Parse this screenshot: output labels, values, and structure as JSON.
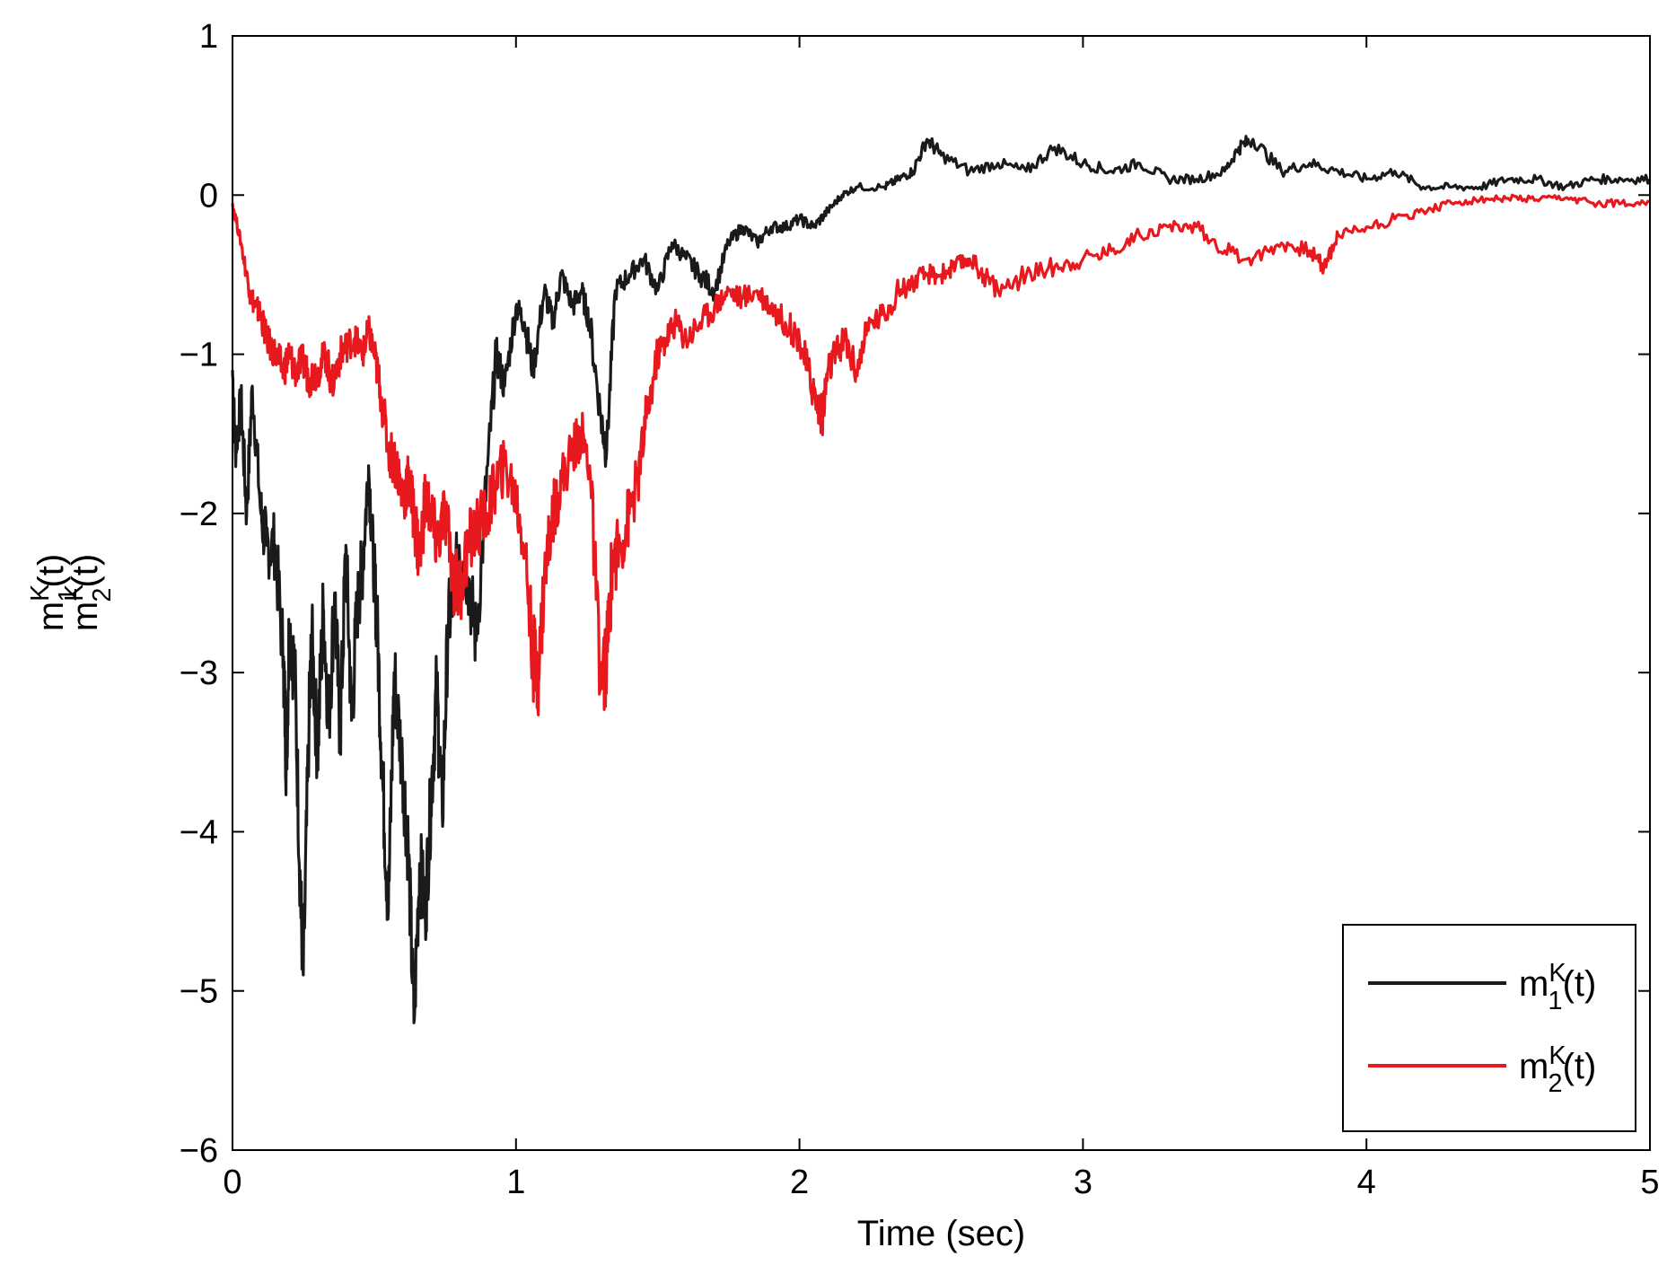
{
  "chart_data": {
    "type": "line",
    "title": "",
    "xlabel": "Time (sec)",
    "ylabel_lines": [
      {
        "base": "m",
        "sub": "1",
        "sup": "K",
        "suffix": "(t)"
      },
      {
        "base": "m",
        "sub": "2",
        "sup": "K",
        "suffix": "(t)"
      }
    ],
    "xlim": [
      0,
      5
    ],
    "ylim": [
      -6,
      1
    ],
    "xticks": [
      0,
      1,
      2,
      3,
      4,
      5
    ],
    "xtick_labels": [
      "0",
      "1",
      "2",
      "3",
      "4",
      "5"
    ],
    "yticks": [
      1,
      0,
      -1,
      -2,
      -3,
      -4,
      -5,
      -6
    ],
    "ytick_labels": [
      "1",
      "0",
      "−1",
      "−2",
      "−3",
      "−4",
      "−5",
      "−6"
    ],
    "grid": false,
    "legend_position": "bottom-right",
    "series": [
      {
        "name": "m1K(t)",
        "label": {
          "base": "m",
          "sub": "1",
          "sup": "K",
          "suffix": "(t)"
        },
        "color": "#1a1a1a",
        "x": [
          0,
          0.01,
          0.03,
          0.05,
          0.07,
          0.1,
          0.12,
          0.15,
          0.18,
          0.19,
          0.2,
          0.22,
          0.24,
          0.25,
          0.27,
          0.28,
          0.3,
          0.32,
          0.34,
          0.36,
          0.38,
          0.4,
          0.42,
          0.44,
          0.46,
          0.48,
          0.5,
          0.51,
          0.53,
          0.55,
          0.57,
          0.6,
          0.62,
          0.64,
          0.66,
          0.68,
          0.7,
          0.72,
          0.74,
          0.76,
          0.78,
          0.8,
          0.83,
          0.86,
          0.9,
          0.93,
          0.96,
          1.0,
          1.03,
          1.06,
          1.1,
          1.13,
          1.16,
          1.2,
          1.23,
          1.26,
          1.3,
          1.32,
          1.35,
          1.4,
          1.45,
          1.5,
          1.55,
          1.6,
          1.65,
          1.7,
          1.75,
          1.8,
          1.85,
          1.9,
          1.95,
          2.0,
          2.05,
          2.1,
          2.15,
          2.2,
          2.3,
          2.35,
          2.4,
          2.45,
          2.5,
          2.6,
          2.7,
          2.8,
          2.9,
          3.0,
          3.1,
          3.2,
          3.3,
          3.4,
          3.5,
          3.55,
          3.6,
          3.7,
          3.8,
          3.9,
          4.0,
          4.1,
          4.2,
          4.3,
          4.4,
          4.5,
          4.6,
          4.7,
          4.8,
          4.9,
          5.0
        ],
        "y": [
          -1.1,
          -1.6,
          -1.3,
          -2.0,
          -1.2,
          -2.0,
          -2.2,
          -2.2,
          -2.9,
          -3.6,
          -2.7,
          -3.0,
          -4.4,
          -4.9,
          -3.3,
          -2.8,
          -3.5,
          -2.6,
          -3.3,
          -2.5,
          -3.4,
          -2.2,
          -3.3,
          -2.6,
          -2.3,
          -1.7,
          -2.4,
          -2.7,
          -3.7,
          -4.5,
          -3.0,
          -3.6,
          -4.1,
          -5.2,
          -4.2,
          -4.5,
          -3.8,
          -3.1,
          -3.9,
          -2.7,
          -2.5,
          -2.2,
          -2.4,
          -2.8,
          -1.7,
          -1.0,
          -1.2,
          -0.7,
          -0.8,
          -1.1,
          -0.6,
          -0.8,
          -0.5,
          -0.7,
          -0.6,
          -0.8,
          -1.4,
          -1.6,
          -0.6,
          -0.5,
          -0.4,
          -0.6,
          -0.3,
          -0.4,
          -0.5,
          -0.6,
          -0.3,
          -0.2,
          -0.3,
          -0.2,
          -0.2,
          -0.15,
          -0.2,
          -0.1,
          0.0,
          0.05,
          0.05,
          0.1,
          0.15,
          0.35,
          0.25,
          0.15,
          0.2,
          0.15,
          0.3,
          0.2,
          0.15,
          0.2,
          0.1,
          0.1,
          0.15,
          0.3,
          0.35,
          0.15,
          0.2,
          0.15,
          0.1,
          0.15,
          0.05,
          0.05,
          0.05,
          0.1,
          0.1,
          0.05,
          0.1,
          0.1,
          0.1
        ]
      },
      {
        "name": "m2K(t)",
        "label": {
          "base": "m",
          "sub": "2",
          "sup": "K",
          "suffix": "(t)"
        },
        "color": "#e8191e",
        "x": [
          0,
          0.03,
          0.06,
          0.08,
          0.1,
          0.12,
          0.15,
          0.18,
          0.2,
          0.22,
          0.25,
          0.27,
          0.3,
          0.33,
          0.35,
          0.38,
          0.4,
          0.43,
          0.46,
          0.48,
          0.5,
          0.52,
          0.55,
          0.58,
          0.6,
          0.62,
          0.64,
          0.66,
          0.68,
          0.7,
          0.72,
          0.75,
          0.78,
          0.8,
          0.83,
          0.86,
          0.9,
          0.93,
          0.96,
          1.0,
          1.03,
          1.06,
          1.08,
          1.1,
          1.13,
          1.16,
          1.2,
          1.23,
          1.26,
          1.3,
          1.32,
          1.34,
          1.37,
          1.4,
          1.43,
          1.46,
          1.5,
          1.53,
          1.56,
          1.6,
          1.65,
          1.7,
          1.75,
          1.8,
          1.85,
          1.9,
          1.95,
          2.0,
          2.03,
          2.06,
          2.08,
          2.1,
          2.13,
          2.16,
          2.2,
          2.25,
          2.3,
          2.35,
          2.4,
          2.45,
          2.5,
          2.55,
          2.6,
          2.65,
          2.7,
          2.8,
          2.9,
          3.0,
          3.1,
          3.2,
          3.3,
          3.4,
          3.5,
          3.6,
          3.7,
          3.8,
          3.85,
          3.9,
          4.0,
          4.1,
          4.2,
          4.3,
          4.4,
          4.5,
          4.6,
          4.7,
          4.8,
          4.9,
          5.0
        ],
        "y": [
          -0.05,
          -0.3,
          -0.6,
          -0.7,
          -0.75,
          -0.9,
          -1.0,
          -1.1,
          -1.0,
          -1.1,
          -1.05,
          -1.15,
          -1.1,
          -1.0,
          -1.2,
          -1.0,
          -0.95,
          -0.9,
          -1.0,
          -0.85,
          -1.0,
          -1.2,
          -1.6,
          -1.7,
          -1.9,
          -1.8,
          -2.0,
          -2.3,
          -1.9,
          -2.0,
          -2.2,
          -2.0,
          -2.4,
          -2.5,
          -2.2,
          -2.1,
          -2.0,
          -1.8,
          -1.7,
          -1.9,
          -2.2,
          -2.9,
          -3.0,
          -2.4,
          -2.0,
          -1.8,
          -1.6,
          -1.5,
          -1.7,
          -3.1,
          -2.9,
          -2.3,
          -2.2,
          -2.0,
          -1.8,
          -1.4,
          -1.0,
          -0.9,
          -0.8,
          -0.9,
          -0.8,
          -0.7,
          -0.6,
          -0.65,
          -0.6,
          -0.7,
          -0.8,
          -0.9,
          -1.1,
          -1.3,
          -1.4,
          -1.1,
          -1.0,
          -0.9,
          -1.1,
          -0.8,
          -0.75,
          -0.6,
          -0.55,
          -0.5,
          -0.5,
          -0.45,
          -0.4,
          -0.5,
          -0.6,
          -0.5,
          -0.45,
          -0.4,
          -0.35,
          -0.25,
          -0.2,
          -0.2,
          -0.35,
          -0.4,
          -0.3,
          -0.35,
          -0.45,
          -0.25,
          -0.2,
          -0.15,
          -0.1,
          -0.05,
          -0.03,
          -0.02,
          -0.03,
          -0.02,
          -0.05,
          -0.05,
          -0.04
        ]
      }
    ]
  }
}
